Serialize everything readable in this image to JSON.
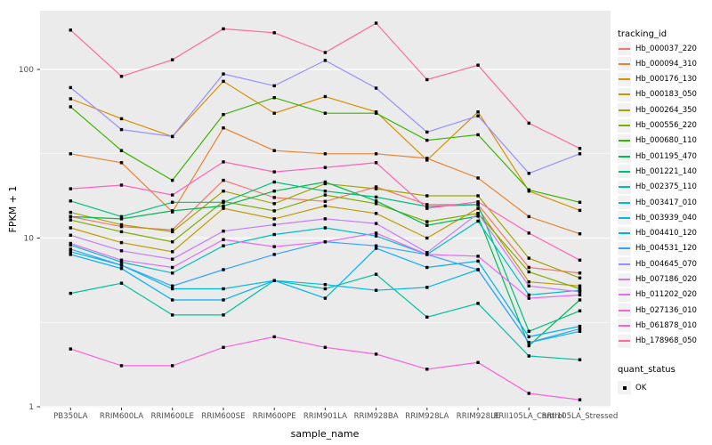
{
  "figure": {
    "ylabel": "FPKM + 1",
    "xlabel": "sample_name",
    "legend_title": "tracking_id",
    "legend2_title": "quant_status",
    "legend2_item": "OK"
  },
  "chart_data": {
    "type": "line",
    "title": "",
    "xlabel": "sample_name",
    "ylabel": "FPKM + 1",
    "y_scale": "log10",
    "y_ticks": [
      1,
      10,
      100
    ],
    "y_minor_ticks": [
      3.162,
      31.62
    ],
    "ylim_log": [
      1,
      224
    ],
    "grid": "white-on-gray",
    "panel_bg": "#EBEBEB",
    "grid_color": "#FFFFFF",
    "marker": "black-square",
    "legend_position": "right",
    "x_categories": [
      "PB350LA",
      "RRIM600LA",
      "RRIM600LE",
      "RRIM600SE",
      "RRIM600PE",
      "RRIM901LA",
      "RRIM928BA",
      "RRIM928LA",
      "RRIM928LE",
      "RRII105LA_Control",
      "RRII105LA_Stressed"
    ],
    "series": [
      {
        "name": "Hb_000037_220",
        "color": "#F8766D",
        "values": [
          13.4,
          11.7,
          11.2,
          22.0,
          17.4,
          16.5,
          20.1,
          15.8,
          15.8,
          6.7,
          6.2
        ]
      },
      {
        "name": "Hb_000094_310",
        "color": "#EA8331",
        "values": [
          31.6,
          28.0,
          14.3,
          45.0,
          33.0,
          31.6,
          31.6,
          29.7,
          22.7,
          13.4,
          10.6
        ]
      },
      {
        "name": "Hb_000176_130",
        "color": "#D89000",
        "values": [
          67.0,
          51.0,
          40.0,
          85.0,
          55.0,
          69.0,
          56.0,
          29.0,
          56.0,
          19.0,
          14.6
        ]
      },
      {
        "name": "Hb_000183_050",
        "color": "#C09B00",
        "values": [
          11.5,
          9.4,
          8.3,
          15.0,
          13.0,
          15.5,
          14.0,
          10.0,
          15.0,
          5.5,
          5.2
        ]
      },
      {
        "name": "Hb_000264_350",
        "color": "#A3A500",
        "values": [
          14.2,
          12.0,
          10.9,
          19.0,
          16.0,
          21.0,
          19.6,
          17.8,
          17.8,
          7.6,
          5.8
        ]
      },
      {
        "name": "Hb_000556_220",
        "color": "#7CAE00",
        "values": [
          12.8,
          10.9,
          9.5,
          16.5,
          14.5,
          18.0,
          16.0,
          12.5,
          14.0,
          6.3,
          5.0
        ]
      },
      {
        "name": "Hb_000680_110",
        "color": "#39B600",
        "values": [
          60.0,
          33.0,
          22.0,
          54.0,
          68.0,
          55.0,
          55.0,
          38.0,
          41.0,
          19.3,
          16.3
        ]
      },
      {
        "name": "Hb_001195_470",
        "color": "#00BB4E",
        "values": [
          13.4,
          13.0,
          14.5,
          15.5,
          19.0,
          21.5,
          16.6,
          11.9,
          13.5,
          2.3,
          4.3
        ]
      },
      {
        "name": "Hb_001221_140",
        "color": "#00BF7D",
        "values": [
          16.6,
          13.4,
          16.3,
          16.3,
          21.5,
          19.0,
          17.5,
          15.4,
          15.8,
          2.8,
          3.7
        ]
      },
      {
        "name": "Hb_002375_110",
        "color": "#00C1A3",
        "values": [
          4.7,
          5.4,
          3.5,
          3.5,
          5.6,
          5.0,
          6.1,
          3.4,
          4.1,
          2.0,
          1.9
        ]
      },
      {
        "name": "Hb_003417_010",
        "color": "#00BFC4",
        "values": [
          9.1,
          7.2,
          6.2,
          9.0,
          10.5,
          11.5,
          10.3,
          8.0,
          12.6,
          4.6,
          4.9
        ]
      },
      {
        "name": "Hb_003939_040",
        "color": "#00BAE0",
        "values": [
          8.3,
          6.9,
          5.0,
          5.0,
          5.6,
          5.3,
          4.9,
          5.1,
          6.5,
          2.4,
          2.8
        ]
      },
      {
        "name": "Hb_004410_120",
        "color": "#00B0F6",
        "values": [
          8.0,
          6.6,
          4.3,
          4.3,
          5.6,
          4.4,
          8.7,
          6.7,
          7.3,
          2.6,
          3.0
        ]
      },
      {
        "name": "Hb_004531_120",
        "color": "#35A2FF",
        "values": [
          8.6,
          6.9,
          5.2,
          6.5,
          8.0,
          9.5,
          9.0,
          8.0,
          6.5,
          2.4,
          2.9
        ]
      },
      {
        "name": "Hb_004645_070",
        "color": "#9590FF",
        "values": [
          78.0,
          44.0,
          40.0,
          94.0,
          80.0,
          113.0,
          77.5,
          42.5,
          53.0,
          24.2,
          31.6
        ]
      },
      {
        "name": "Hb_007186_020",
        "color": "#C77CFF",
        "values": [
          10.4,
          8.4,
          7.5,
          11.0,
          12.0,
          13.0,
          12.2,
          8.2,
          14.0,
          5.2,
          4.8
        ]
      },
      {
        "name": "Hb_011202_020",
        "color": "#E76BF3",
        "values": [
          9.3,
          7.4,
          6.7,
          9.8,
          8.9,
          9.5,
          10.7,
          8.0,
          7.8,
          4.4,
          4.6
        ]
      },
      {
        "name": "Hb_027136_010",
        "color": "#FA62DB",
        "values": [
          2.2,
          1.75,
          1.75,
          2.25,
          2.6,
          2.25,
          2.05,
          1.67,
          1.83,
          1.2,
          1.1
        ]
      },
      {
        "name": "Hb_061878_010",
        "color": "#FF62BC",
        "values": [
          19.6,
          20.6,
          18.0,
          28.3,
          24.7,
          26.2,
          28.0,
          15.0,
          16.4,
          10.7,
          7.4
        ]
      },
      {
        "name": "Hb_178968_050",
        "color": "#FF6A98",
        "values": [
          171,
          91,
          114,
          174,
          165,
          126,
          188,
          87,
          106,
          48,
          34
        ]
      }
    ],
    "quant_status_legend": {
      "title": "quant_status",
      "items": [
        "OK"
      ]
    }
  }
}
